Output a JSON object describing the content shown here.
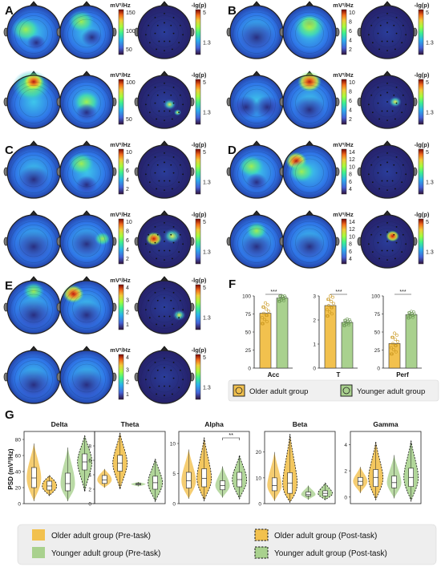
{
  "panels": {
    "A": {
      "letter": "A",
      "scale1": {
        "unit": "mV²/Hz",
        "ticks": [
          "150",
          "100",
          "50"
        ]
      },
      "scale2": {
        "unit": "mV²/Hz",
        "ticks": [
          "100",
          "50"
        ]
      },
      "p_unit": "-lg(p)",
      "p_ticks": [
        "5",
        "1.3"
      ]
    },
    "B": {
      "letter": "B",
      "scale1": {
        "unit": "mV²/Hz",
        "ticks": [
          "10",
          "8",
          "6",
          "4",
          "2"
        ]
      },
      "scale2": {
        "unit": "mV²/Hz",
        "ticks": [
          "10",
          "8",
          "6",
          "4",
          "2"
        ]
      },
      "p_unit": "-lg(p)",
      "p_ticks": [
        "5",
        "1.3"
      ]
    },
    "C": {
      "letter": "C",
      "scale1": {
        "unit": "mV²/Hz",
        "ticks": [
          "10",
          "8",
          "6",
          "4",
          "2"
        ]
      },
      "scale2": {
        "unit": "mV²/Hz",
        "ticks": [
          "10",
          "8",
          "6",
          "4",
          "2"
        ]
      },
      "p_unit": "-lg(p)",
      "p_ticks": [
        "5",
        "1.3"
      ]
    },
    "D": {
      "letter": "D",
      "scale1": {
        "unit": "mV²/Hz",
        "ticks": [
          "14",
          "12",
          "10",
          "8",
          "6",
          "4"
        ]
      },
      "scale2": {
        "unit": "mV²/Hz",
        "ticks": [
          "14",
          "12",
          "10",
          "8",
          "6",
          "4"
        ]
      },
      "p_unit": "-lg(p)",
      "p_ticks": [
        "5",
        "1.3"
      ]
    },
    "E": {
      "letter": "E",
      "scale1": {
        "unit": "mV²/Hz",
        "ticks": [
          "4",
          "3",
          "2",
          "1"
        ]
      },
      "scale2": {
        "unit": "mV²/Hz",
        "ticks": [
          "4",
          "3",
          "2",
          "1"
        ]
      },
      "p_unit": "-lg(p)",
      "p_ticks": [
        "5",
        "1.3"
      ]
    }
  },
  "panel_F": {
    "letter": "F"
  },
  "panel_G": {
    "letter": "G",
    "ylabel": "PSD (mV²/Hz)"
  },
  "legend_F": {
    "older": "Older adult group",
    "younger": "Younger adult group"
  },
  "legend_G": {
    "older_pre": "Older adult group (Pre-task)",
    "older_post": "Older adult group (Post-task)",
    "younger_pre": "Younger adult group (Pre-task)",
    "younger_post": "Younger adult group (Post-task)"
  },
  "colors": {
    "older": "#f2c14e",
    "younger": "#a9d18e",
    "older_dark": "#c9961c",
    "younger_dark": "#6f9a57"
  },
  "chart_data": [
    {
      "type": "bar",
      "title": "Acc",
      "categories": [
        "Older adult group",
        "Younger adult group"
      ],
      "values": [
        76,
        97
      ],
      "ylim": [
        0,
        100
      ],
      "yticks": [
        "0",
        "25",
        "50",
        "75",
        "100"
      ],
      "significance": "***"
    },
    {
      "type": "bar",
      "title": "T",
      "categories": [
        "Older adult group",
        "Younger adult group"
      ],
      "values": [
        2.6,
        1.9
      ],
      "ylim": [
        0,
        3
      ],
      "yticks": [
        "0",
        "1",
        "2",
        "3"
      ],
      "significance": "***"
    },
    {
      "type": "bar",
      "title": "Perf",
      "categories": [
        "Older adult group",
        "Younger adult group"
      ],
      "values": [
        34,
        74
      ],
      "ylim": [
        0,
        100
      ],
      "yticks": [
        "0",
        "25",
        "50",
        "75",
        "100"
      ],
      "significance": "***"
    },
    {
      "type": "violin",
      "title": "Delta",
      "ylim": [
        0,
        90
      ],
      "yticks": [
        "0",
        "20",
        "40",
        "60",
        "80"
      ],
      "groups": [
        {
          "series": "Older adult group (Pre-task)",
          "median": 32,
          "q1": 20,
          "q3": 45,
          "min": 3,
          "max": 75
        },
        {
          "series": "Older adult group (Post-task)",
          "median": 22,
          "q1": 17,
          "q3": 28,
          "min": 10,
          "max": 35
        },
        {
          "series": "Younger adult group (Pre-task)",
          "median": 25,
          "q1": 16,
          "q3": 38,
          "min": 3,
          "max": 70
        },
        {
          "series": "Younger adult group (Post-task)",
          "median": 52,
          "q1": 42,
          "q3": 62,
          "min": 15,
          "max": 85
        }
      ]
    },
    {
      "type": "violin",
      "title": "Theta",
      "ylim": [
        0,
        10
      ],
      "yticks": [
        "0",
        "2",
        "4",
        "6",
        "8"
      ],
      "groups": [
        {
          "series": "Older adult group (Pre-task)",
          "median": 3.3,
          "q1": 2.8,
          "q3": 3.9,
          "min": 2.2,
          "max": 4.8
        },
        {
          "series": "Older adult group (Post-task)",
          "median": 5.6,
          "q1": 4.5,
          "q3": 6.7,
          "min": 2.0,
          "max": 9.8
        },
        {
          "series": "Younger adult group (Pre-task)",
          "median": 2.7,
          "q1": 2.6,
          "q3": 2.8,
          "min": 2.4,
          "max": 3.0
        },
        {
          "series": "Younger adult group (Post-task)",
          "median": 2.9,
          "q1": 2.0,
          "q3": 3.8,
          "min": 0.3,
          "max": 6.2
        }
      ]
    },
    {
      "type": "violin",
      "title": "Alpha",
      "ylim": [
        0,
        12
      ],
      "yticks": [
        "0",
        "5",
        "10"
      ],
      "significance": "**",
      "groups": [
        {
          "series": "Older adult group (Pre-task)",
          "median": 3.8,
          "q1": 2.6,
          "q3": 5.2,
          "min": 0.8,
          "max": 9.0
        },
        {
          "series": "Older adult group (Post-task)",
          "median": 4.2,
          "q1": 2.8,
          "q3": 5.8,
          "min": 0.5,
          "max": 11.0
        },
        {
          "series": "Younger adult group (Pre-task)",
          "median": 3.0,
          "q1": 2.3,
          "q3": 3.8,
          "min": 1.0,
          "max": 6.2
        },
        {
          "series": "Younger adult group (Post-task)",
          "median": 4.0,
          "q1": 2.8,
          "q3": 5.2,
          "min": 0.8,
          "max": 8.0
        }
      ]
    },
    {
      "type": "violin",
      "title": "Beta",
      "ylim": [
        0,
        28
      ],
      "yticks": [
        "0",
        "10",
        "20"
      ],
      "groups": [
        {
          "series": "Older adult group (Pre-task)",
          "median": 7,
          "q1": 5,
          "q3": 10,
          "min": 1,
          "max": 20
        },
        {
          "series": "Older adult group (Post-task)",
          "median": 8,
          "q1": 4,
          "q3": 12,
          "min": 0.5,
          "max": 27
        },
        {
          "series": "Younger adult group (Pre-task)",
          "median": 3.5,
          "q1": 3,
          "q3": 4.5,
          "min": 1.5,
          "max": 7
        },
        {
          "series": "Younger adult group (Post-task)",
          "median": 4,
          "q1": 3,
          "q3": 5,
          "min": 1.5,
          "max": 8
        }
      ]
    },
    {
      "type": "violin",
      "title": "Gamma",
      "ylim": [
        -0.5,
        5
      ],
      "yticks": [
        "0",
        "2",
        "4"
      ],
      "groups": [
        {
          "series": "Older adult group (Pre-task)",
          "median": 1.2,
          "q1": 0.9,
          "q3": 1.5,
          "min": 0.3,
          "max": 2.3
        },
        {
          "series": "Older adult group (Post-task)",
          "median": 1.5,
          "q1": 0.8,
          "q3": 2.1,
          "min": -0.2,
          "max": 4.2
        },
        {
          "series": "Younger adult group (Pre-task)",
          "median": 1.1,
          "q1": 0.7,
          "q3": 1.6,
          "min": -0.1,
          "max": 3.2
        },
        {
          "series": "Younger adult group (Post-task)",
          "median": 1.5,
          "q1": 0.8,
          "q3": 2.2,
          "min": -0.3,
          "max": 4.3
        }
      ]
    }
  ]
}
